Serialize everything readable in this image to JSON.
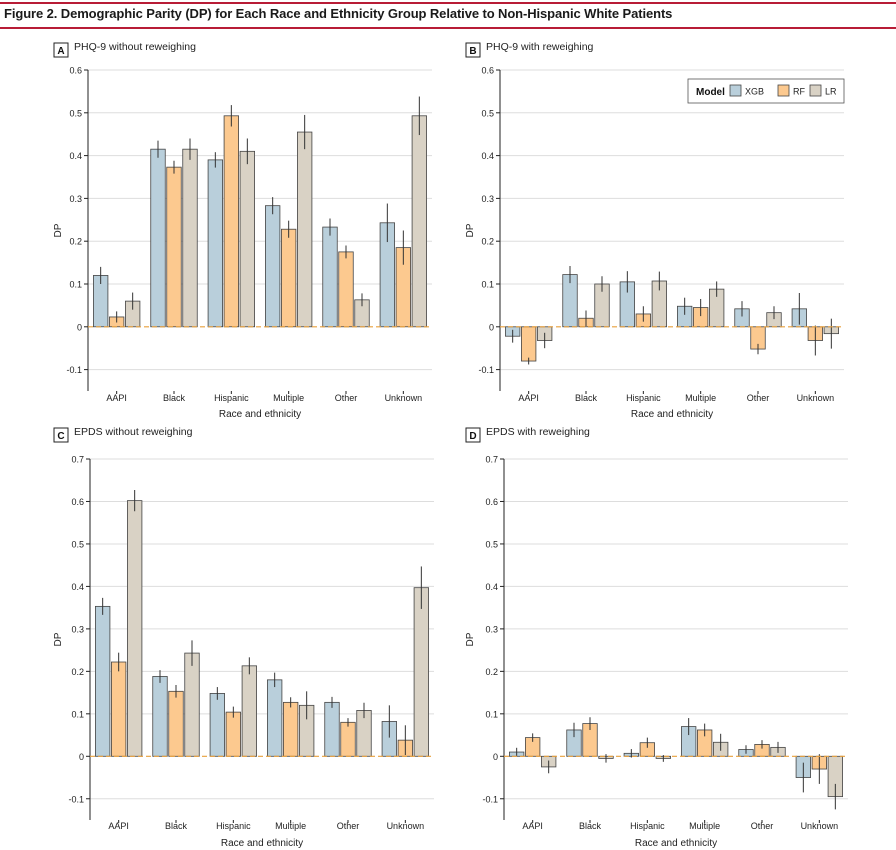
{
  "figure_title": "Figure 2. Demographic Parity (DP) for Each Race and Ethnicity Group Relative to Non-Hispanic White Patients",
  "colors": {
    "XGB": "#b9cfdb",
    "RF": "#fcc98f",
    "LR": "#d9d2c5",
    "zero_line": "#e8a03c",
    "grid": "#dddddd",
    "error_bar": "#333333",
    "title_rule": "#b81c36"
  },
  "legend": {
    "title": "Model",
    "entries": [
      "XGB",
      "RF",
      "LR"
    ]
  },
  "chart_data": [
    {
      "panel": "A",
      "title": "PHQ-9 without reweighing",
      "type": "bar",
      "categories": [
        "AAPI",
        "Black",
        "Hispanic",
        "Multiple",
        "Other",
        "Unknown"
      ],
      "xlabel": "Race and ethnicity",
      "ylabel": "DP",
      "ylim": [
        -0.15,
        0.6
      ],
      "yticks": [
        "0.6",
        "0.5",
        "0.4",
        "0.3",
        "0.2",
        "0.1",
        "0",
        "-0.1"
      ],
      "series": [
        {
          "name": "XGB",
          "values": [
            0.12,
            0.415,
            0.39,
            0.283,
            0.233,
            0.243
          ],
          "err": [
            0.02,
            0.02,
            0.018,
            0.02,
            0.02,
            0.045
          ]
        },
        {
          "name": "RF",
          "values": [
            0.023,
            0.373,
            0.493,
            0.228,
            0.175,
            0.185
          ],
          "err": [
            0.013,
            0.015,
            0.025,
            0.02,
            0.015,
            0.04
          ]
        },
        {
          "name": "LR",
          "values": [
            0.06,
            0.415,
            0.41,
            0.455,
            0.063,
            0.493
          ],
          "err": [
            0.02,
            0.025,
            0.03,
            0.04,
            0.015,
            0.045
          ]
        }
      ]
    },
    {
      "panel": "B",
      "title": "PHQ-9 with reweighing",
      "type": "bar",
      "categories": [
        "AAPI",
        "Black",
        "Hispanic",
        "Multiple",
        "Other",
        "Unknown"
      ],
      "xlabel": "Race and ethnicity",
      "ylabel": "DP",
      "ylim": [
        -0.15,
        0.6
      ],
      "yticks": [
        "0.6",
        "0.5",
        "0.4",
        "0.3",
        "0.2",
        "0.1",
        "0",
        "-0.1"
      ],
      "legend_visible": true,
      "series": [
        {
          "name": "XGB",
          "values": [
            -0.022,
            0.122,
            0.105,
            0.048,
            0.042,
            0.042
          ],
          "err": [
            0.015,
            0.02,
            0.025,
            0.02,
            0.018,
            0.037
          ]
        },
        {
          "name": "RF",
          "values": [
            -0.08,
            0.02,
            0.03,
            0.045,
            -0.052,
            -0.032
          ],
          "err": [
            0.008,
            0.018,
            0.018,
            0.02,
            0.012,
            0.035
          ]
        },
        {
          "name": "LR",
          "values": [
            -0.032,
            0.1,
            0.107,
            0.088,
            0.033,
            -0.016
          ],
          "err": [
            0.018,
            0.018,
            0.022,
            0.018,
            0.015,
            0.035
          ]
        }
      ]
    },
    {
      "panel": "C",
      "title": "EPDS without reweighing",
      "type": "bar",
      "categories": [
        "AAPI",
        "Black",
        "Hispanic",
        "Multiple",
        "Other",
        "Unknown"
      ],
      "xlabel": "Race and ethnicity",
      "ylabel": "DP",
      "ylim": [
        -0.15,
        0.7
      ],
      "yticks": [
        "0.7",
        "0.6",
        "0.5",
        "0.4",
        "0.3",
        "0.2",
        "0.1",
        "0",
        "-0.1"
      ],
      "series": [
        {
          "name": "XGB",
          "values": [
            0.353,
            0.188,
            0.148,
            0.18,
            0.127,
            0.082
          ],
          "err": [
            0.02,
            0.015,
            0.015,
            0.017,
            0.013,
            0.038
          ]
        },
        {
          "name": "RF",
          "values": [
            0.222,
            0.153,
            0.104,
            0.127,
            0.08,
            0.038
          ],
          "err": [
            0.022,
            0.015,
            0.013,
            0.012,
            0.01,
            0.035
          ]
        },
        {
          "name": "LR",
          "values": [
            0.602,
            0.243,
            0.213,
            0.12,
            0.108,
            0.397
          ],
          "err": [
            0.025,
            0.03,
            0.02,
            0.033,
            0.018,
            0.05
          ]
        }
      ]
    },
    {
      "panel": "D",
      "title": "EPDS with reweighing",
      "type": "bar",
      "categories": [
        "AAPI",
        "Black",
        "Hispanic",
        "Multiple",
        "Other",
        "Unknown"
      ],
      "xlabel": "Race and ethnicity",
      "ylabel": "DP",
      "ylim": [
        -0.15,
        0.7
      ],
      "yticks": [
        "0.7",
        "0.6",
        "0.5",
        "0.4",
        "0.3",
        "0.2",
        "0.1",
        "0",
        "-0.1"
      ],
      "series": [
        {
          "name": "XGB",
          "values": [
            0.01,
            0.062,
            0.007,
            0.07,
            0.016,
            -0.05
          ],
          "err": [
            0.01,
            0.017,
            0.01,
            0.02,
            0.01,
            0.035
          ]
        },
        {
          "name": "RF",
          "values": [
            0.044,
            0.077,
            0.032,
            0.062,
            0.028,
            -0.03
          ],
          "err": [
            0.01,
            0.015,
            0.012,
            0.015,
            0.01,
            0.035
          ]
        },
        {
          "name": "LR",
          "values": [
            -0.025,
            -0.005,
            -0.005,
            0.033,
            0.021,
            -0.095
          ],
          "err": [
            0.015,
            0.01,
            0.008,
            0.02,
            0.013,
            0.03
          ]
        }
      ]
    }
  ]
}
